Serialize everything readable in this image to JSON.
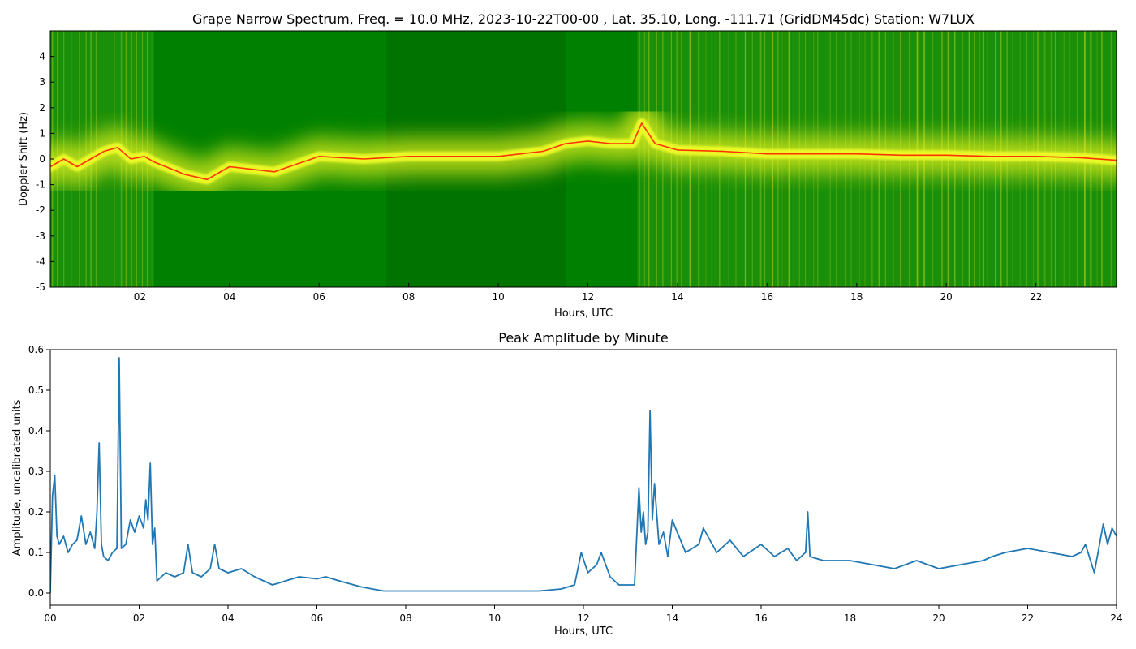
{
  "chart_data": [
    {
      "type": "heatmap",
      "title": "Grape Narrow Spectrum, Freq. = 10.0 MHz, 2023-10-22T00-00 , Lat.  35.10, Long. -111.71 (GridDM45dc) Station: W7LUX",
      "xlabel": "Hours, UTC",
      "ylabel": "Doppler Shift (Hz)",
      "xlim": [
        0,
        23.8
      ],
      "ylim": [
        -5,
        5
      ],
      "x_ticks": [
        2,
        4,
        6,
        8,
        10,
        12,
        14,
        16,
        18,
        20,
        22
      ],
      "x_tick_labels": [
        "02",
        "04",
        "06",
        "08",
        "10",
        "12",
        "14",
        "16",
        "18",
        "20",
        "22"
      ],
      "y_ticks": [
        -5,
        -4,
        -3,
        -2,
        -1,
        0,
        1,
        2,
        3,
        4
      ],
      "y_tick_labels": [
        "-5",
        "-4",
        "-3",
        "-2",
        "-1",
        "0",
        "1",
        "2",
        "3",
        "4"
      ],
      "colormap": [
        "#008000",
        "#ffff00",
        "#ff0000"
      ],
      "background_color": "#008000",
      "grid": false,
      "doppler_trace": {
        "x": [
          0.0,
          0.3,
          0.6,
          0.9,
          1.2,
          1.5,
          1.8,
          2.1,
          2.3,
          3.0,
          3.5,
          4.0,
          5.0,
          6.0,
          7.0,
          8.0,
          9.0,
          10.0,
          11.0,
          11.5,
          12.0,
          12.5,
          13.0,
          13.2,
          13.5,
          14.0,
          15.0,
          16.0,
          17.0,
          18.0,
          19.0,
          20.0,
          21.0,
          22.0,
          23.0,
          23.8
        ],
        "y": [
          -0.3,
          0.0,
          -0.3,
          0.0,
          0.3,
          0.45,
          0.0,
          0.1,
          -0.1,
          -0.6,
          -0.8,
          -0.3,
          -0.5,
          0.1,
          0.0,
          0.1,
          0.1,
          0.1,
          0.3,
          0.6,
          0.7,
          0.6,
          0.6,
          1.4,
          0.6,
          0.35,
          0.3,
          0.2,
          0.2,
          0.2,
          0.15,
          0.15,
          0.1,
          0.1,
          0.05,
          -0.05
        ]
      },
      "noise_bands": [
        [
          0.0,
          2.3
        ],
        [
          13.1,
          23.8
        ]
      ],
      "quiet_band": [
        7.5,
        11.5
      ]
    },
    {
      "type": "line",
      "title": "Peak Amplitude by Minute",
      "xlabel": "Hours, UTC",
      "ylabel": "Amplitude, uncalibrated units",
      "xlim": [
        0,
        24
      ],
      "ylim": [
        -0.03,
        0.6
      ],
      "x_ticks": [
        0,
        2,
        4,
        6,
        8,
        10,
        12,
        14,
        16,
        18,
        20,
        22,
        24
      ],
      "x_tick_labels": [
        "00",
        "02",
        "04",
        "06",
        "08",
        "10",
        "12",
        "14",
        "16",
        "18",
        "20",
        "22",
        "24"
      ],
      "y_ticks": [
        0.0,
        0.1,
        0.2,
        0.3,
        0.4,
        0.5,
        0.6
      ],
      "y_tick_labels": [
        "0.0",
        "0.1",
        "0.2",
        "0.3",
        "0.4",
        "0.5",
        "0.6"
      ],
      "grid": false,
      "series": [
        {
          "color": "#1f77b4",
          "x": [
            0.0,
            0.05,
            0.1,
            0.15,
            0.2,
            0.3,
            0.4,
            0.5,
            0.6,
            0.7,
            0.8,
            0.9,
            1.0,
            1.05,
            1.1,
            1.15,
            1.2,
            1.3,
            1.4,
            1.5,
            1.55,
            1.6,
            1.7,
            1.8,
            1.9,
            2.0,
            2.1,
            2.15,
            2.2,
            2.25,
            2.3,
            2.35,
            2.4,
            2.6,
            2.8,
            3.0,
            3.1,
            3.2,
            3.4,
            3.6,
            3.7,
            3.8,
            4.0,
            4.3,
            4.6,
            5.0,
            5.3,
            5.6,
            6.0,
            6.2,
            6.5,
            7.0,
            7.5,
            8.0,
            9.0,
            10.0,
            11.0,
            11.5,
            11.8,
            11.95,
            12.1,
            12.3,
            12.4,
            12.6,
            12.8,
            13.0,
            13.15,
            13.25,
            13.3,
            13.35,
            13.4,
            13.45,
            13.5,
            13.55,
            13.6,
            13.7,
            13.8,
            13.9,
            14.0,
            14.3,
            14.6,
            14.7,
            15.0,
            15.3,
            15.6,
            16.0,
            16.3,
            16.6,
            16.8,
            17.0,
            17.05,
            17.1,
            17.4,
            17.8,
            18.0,
            18.5,
            19.0,
            19.5,
            20.0,
            20.5,
            21.0,
            21.2,
            21.5,
            22.0,
            22.5,
            23.0,
            23.2,
            23.3,
            23.5,
            23.7,
            23.8,
            23.9,
            24.0
          ],
          "y": [
            0.0,
            0.24,
            0.29,
            0.14,
            0.12,
            0.14,
            0.1,
            0.12,
            0.13,
            0.19,
            0.12,
            0.15,
            0.11,
            0.2,
            0.37,
            0.12,
            0.09,
            0.08,
            0.1,
            0.11,
            0.58,
            0.11,
            0.12,
            0.18,
            0.15,
            0.19,
            0.16,
            0.23,
            0.18,
            0.32,
            0.12,
            0.16,
            0.03,
            0.05,
            0.04,
            0.05,
            0.12,
            0.05,
            0.04,
            0.06,
            0.12,
            0.06,
            0.05,
            0.06,
            0.04,
            0.02,
            0.03,
            0.04,
            0.035,
            0.04,
            0.03,
            0.015,
            0.005,
            0.005,
            0.005,
            0.005,
            0.005,
            0.01,
            0.02,
            0.1,
            0.05,
            0.07,
            0.1,
            0.04,
            0.02,
            0.02,
            0.02,
            0.26,
            0.15,
            0.2,
            0.12,
            0.15,
            0.45,
            0.18,
            0.27,
            0.12,
            0.15,
            0.09,
            0.18,
            0.1,
            0.12,
            0.16,
            0.1,
            0.13,
            0.09,
            0.12,
            0.09,
            0.11,
            0.08,
            0.1,
            0.2,
            0.09,
            0.08,
            0.08,
            0.08,
            0.07,
            0.06,
            0.08,
            0.06,
            0.07,
            0.08,
            0.09,
            0.1,
            0.11,
            0.1,
            0.09,
            0.1,
            0.12,
            0.05,
            0.17,
            0.12,
            0.16,
            0.14
          ]
        }
      ]
    }
  ]
}
